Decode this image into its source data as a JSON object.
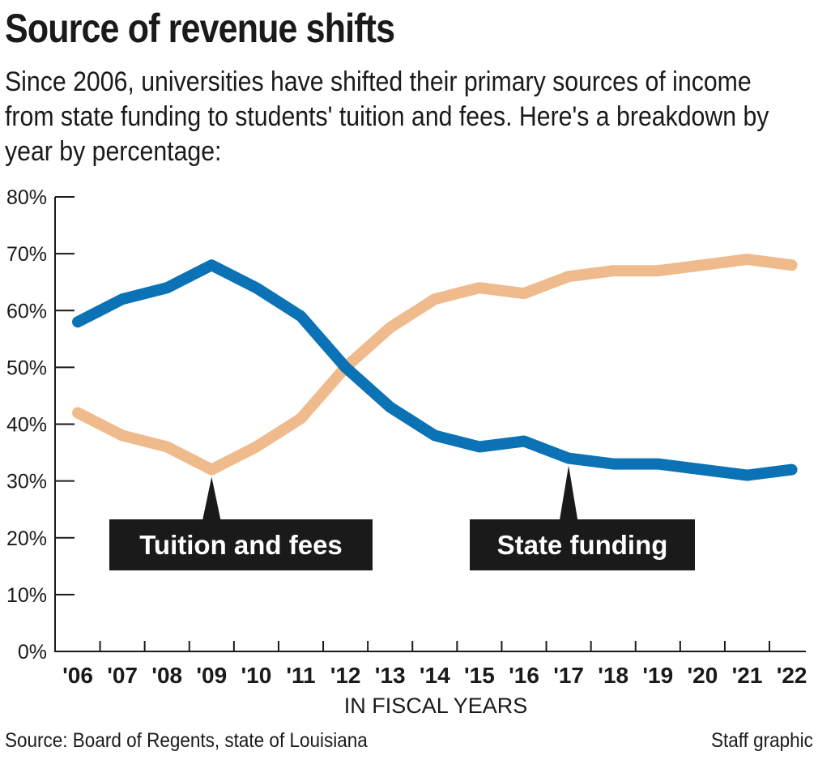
{
  "chart_data": {
    "type": "line",
    "title": "Source of revenue shifts",
    "subtitle": "Since 2006, universities have shifted their primary sources of income from state funding to students' tuition and fees. Here's a breakdown by year by percentage:",
    "categories": [
      "'06",
      "'07",
      "'08",
      "'09",
      "'10",
      "'11",
      "'12",
      "'13",
      "'14",
      "'15",
      "'16",
      "'17",
      "'18",
      "'19",
      "'20",
      "'21",
      "'22"
    ],
    "series": [
      {
        "name": "State funding",
        "color": "#0a72b5",
        "values": [
          58,
          62,
          64,
          68,
          64,
          59,
          50,
          43,
          38,
          36,
          37,
          34,
          33,
          33,
          32,
          31,
          32
        ]
      },
      {
        "name": "Tuition and fees",
        "color": "#f0bb8c",
        "values": [
          42,
          38,
          36,
          32,
          36,
          41,
          50,
          57,
          62,
          64,
          63,
          66,
          67,
          67,
          68,
          69,
          68
        ]
      }
    ],
    "yticks": [
      "0%",
      "10%",
      "20%",
      "30%",
      "40%",
      "50%",
      "60%",
      "70%",
      "80%"
    ],
    "ylim": [
      0,
      80
    ],
    "xlabel": "IN FISCAL YEARS",
    "ylabel": "",
    "annotations": [
      {
        "text": "Tuition and fees",
        "series": "Tuition and fees",
        "point_index": 3
      },
      {
        "text": "State funding",
        "series": "State funding",
        "point_index": 11
      }
    ],
    "source": "Source: Board of Regents, state of Louisiana",
    "credit": "Staff graphic"
  }
}
